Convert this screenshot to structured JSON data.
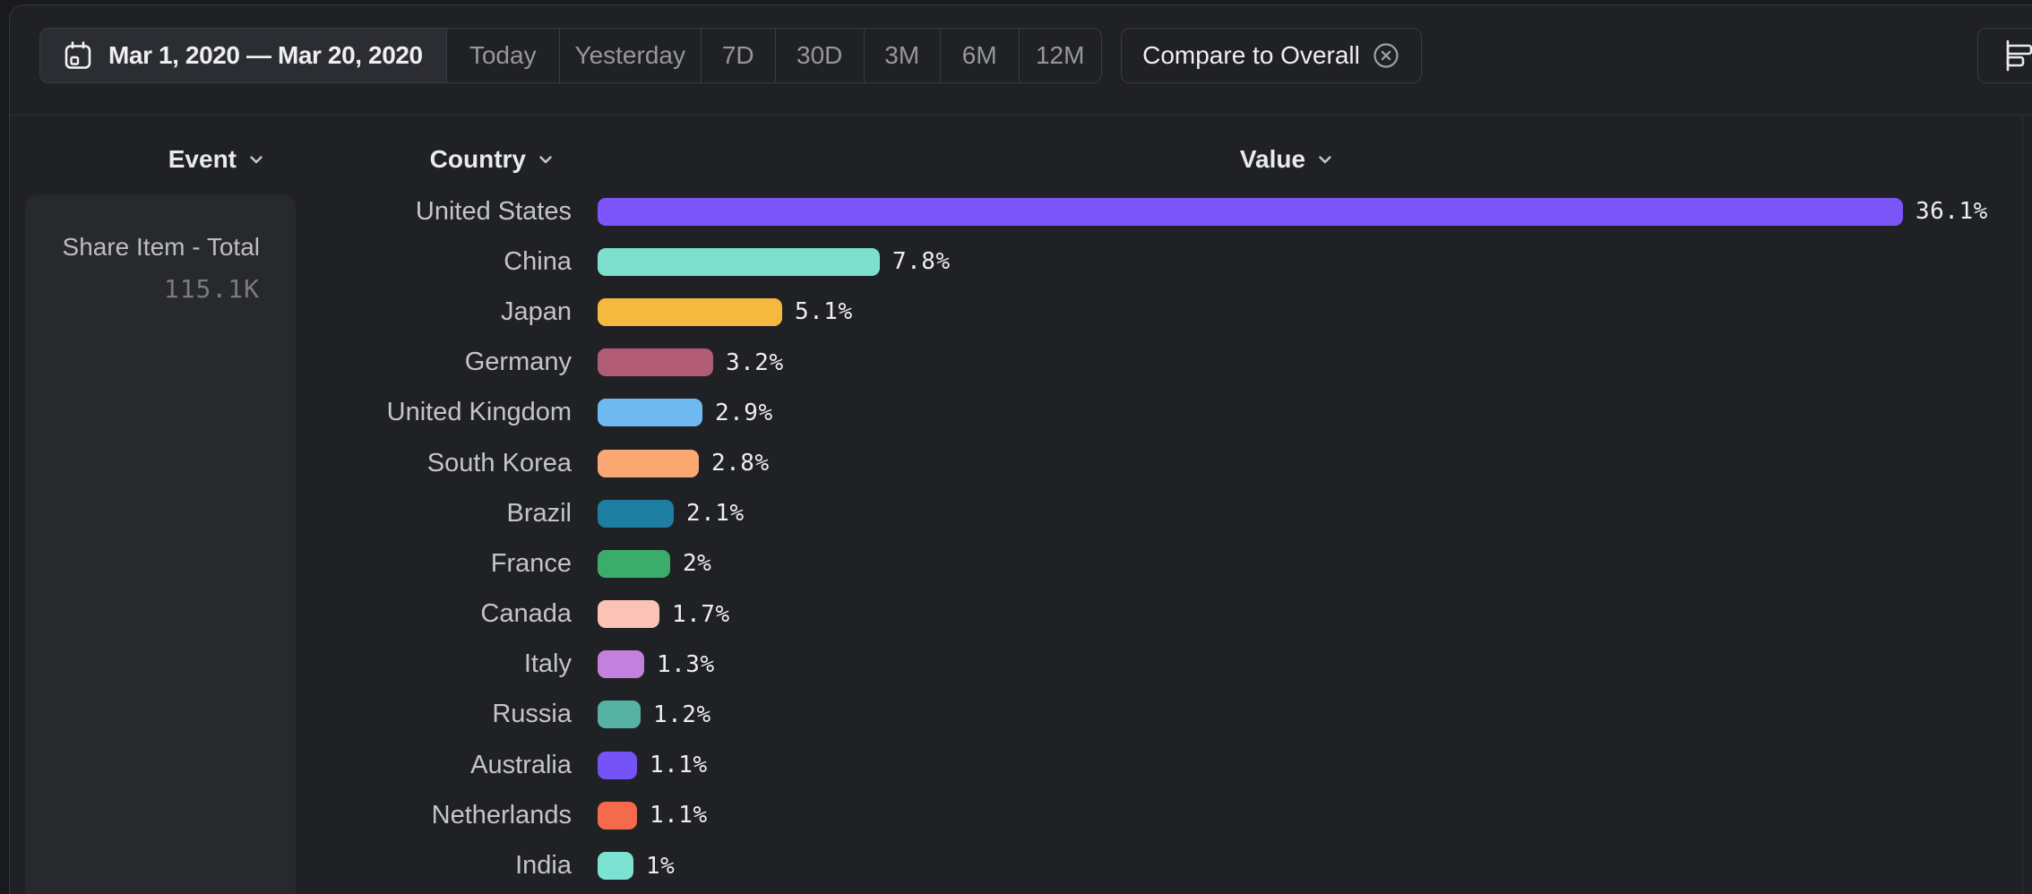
{
  "toolbar": {
    "date_range_label": "Mar 1, 2020 — Mar 20, 2020",
    "presets": [
      "Today",
      "Yesterday",
      "7D",
      "30D",
      "3M",
      "6M",
      "12M"
    ],
    "compare_button_label": "Compare to Overall",
    "icons": {
      "date_range": "calendar-icon",
      "remove_compare": "circle-x-icon",
      "chart_type": "horizontal-bar-chart-icon"
    }
  },
  "columns": {
    "event": "Event",
    "country": "Country",
    "value": "Value"
  },
  "event_panel": {
    "name": "Share Item - Total",
    "total": "115.1K"
  },
  "chart_data": {
    "type": "bar",
    "orientation": "horizontal",
    "title": "",
    "xlabel": "Value",
    "ylabel": "Country",
    "unit": "%",
    "xlim": [
      0,
      36.1
    ],
    "grid": false,
    "categories": [
      "United States",
      "China",
      "Japan",
      "Germany",
      "United Kingdom",
      "South Korea",
      "Brazil",
      "France",
      "Canada",
      "Italy",
      "Russia",
      "Australia",
      "Netherlands",
      "India"
    ],
    "values": [
      36.1,
      7.8,
      5.1,
      3.2,
      2.9,
      2.8,
      2.1,
      2,
      1.7,
      1.3,
      1.2,
      1.1,
      1.1,
      1
    ],
    "value_labels": [
      "36.1%",
      "7.8%",
      "5.1%",
      "3.2%",
      "2.9%",
      "2.8%",
      "2.1%",
      "2%",
      "1.7%",
      "1.3%",
      "1.2%",
      "1.1%",
      "1.1%",
      "1%"
    ],
    "bar_colors": [
      "#7b55f8",
      "#7de0cd",
      "#f6b93f",
      "#b15b74",
      "#6fb9f1",
      "#f9a872",
      "#1e7ea2",
      "#3cac6c",
      "#fac3b6",
      "#c480dd",
      "#56b2a3",
      "#7454f6",
      "#f5694c",
      "#7ce2d1"
    ]
  },
  "colors": {
    "page_bg": "#191a1d",
    "panel_bg": "#202125",
    "event_card_bg": "#28292d",
    "selected_segment_bg": "#2c2d32",
    "border": "#3a3b41",
    "divider": "#2f3035",
    "accent_purple": "#7b55f8",
    "muted_text": "#96979c",
    "label_text": "#c4c5c8",
    "bright_text": "#eeeff1"
  }
}
